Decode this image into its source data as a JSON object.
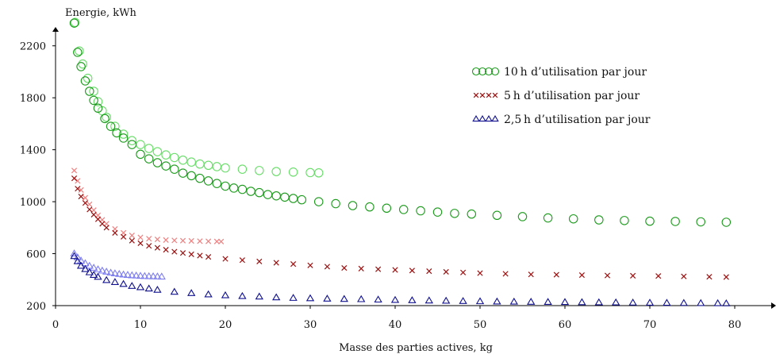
{
  "chart_data": {
    "type": "scatter",
    "title": "",
    "xlabel": "Masse des parties actives, kg",
    "ylabel": "Energie, kWh",
    "xlim": [
      0,
      80
    ],
    "ylim": [
      200,
      2400
    ],
    "xticks": [
      0,
      10,
      20,
      30,
      40,
      50,
      60,
      70,
      80
    ],
    "yticks": [
      200,
      600,
      1000,
      1400,
      1800,
      2200
    ],
    "grid": false,
    "legend_position": "top-right",
    "series": [
      {
        "name": "10 h d’utilisation par jour",
        "marker": "circle",
        "color": "#1a9a1a",
        "color_light": "#66dd66",
        "points": [
          [
            2.2,
            2375
          ],
          [
            2.6,
            2150
          ],
          [
            3.0,
            2040
          ],
          [
            3.5,
            1930
          ],
          [
            4.0,
            1850
          ],
          [
            4.5,
            1780
          ],
          [
            5.0,
            1720
          ],
          [
            5.8,
            1640
          ],
          [
            6.5,
            1580
          ],
          [
            7.2,
            1530
          ],
          [
            8.0,
            1490
          ],
          [
            9.0,
            1440
          ],
          [
            10.0,
            1365
          ],
          [
            11.0,
            1330
          ],
          [
            12.0,
            1300
          ],
          [
            13.0,
            1275
          ],
          [
            14.0,
            1250
          ],
          [
            15.0,
            1220
          ],
          [
            16.0,
            1200
          ],
          [
            17.0,
            1180
          ],
          [
            18.0,
            1160
          ],
          [
            19.0,
            1140
          ],
          [
            20.0,
            1120
          ],
          [
            21.0,
            1105
          ],
          [
            22.0,
            1095
          ],
          [
            23.0,
            1080
          ],
          [
            24.0,
            1070
          ],
          [
            25.0,
            1055
          ],
          [
            26.0,
            1045
          ],
          [
            27.0,
            1035
          ],
          [
            28.0,
            1025
          ],
          [
            29.0,
            1015
          ],
          [
            31.0,
            1000
          ],
          [
            33.0,
            985
          ],
          [
            35.0,
            970
          ],
          [
            37.0,
            960
          ],
          [
            39.0,
            950
          ],
          [
            41.0,
            940
          ],
          [
            43.0,
            930
          ],
          [
            45.0,
            920
          ],
          [
            47.0,
            910
          ],
          [
            49.0,
            905
          ],
          [
            52.0,
            895
          ],
          [
            55.0,
            885
          ],
          [
            58.0,
            875
          ],
          [
            61.0,
            868
          ],
          [
            64.0,
            860
          ],
          [
            67.0,
            855
          ],
          [
            70.0,
            850
          ],
          [
            73.0,
            848
          ],
          [
            76.0,
            845
          ],
          [
            79.0,
            842
          ]
        ],
        "points_light": [
          [
            2.3,
            2380
          ],
          [
            2.8,
            2160
          ],
          [
            3.2,
            2060
          ],
          [
            3.8,
            1950
          ],
          [
            4.5,
            1850
          ],
          [
            5.0,
            1770
          ],
          [
            5.5,
            1700
          ],
          [
            6.0,
            1650
          ],
          [
            7.0,
            1580
          ],
          [
            8.0,
            1520
          ],
          [
            9.0,
            1470
          ],
          [
            10.0,
            1440
          ],
          [
            11.0,
            1410
          ],
          [
            12.0,
            1385
          ],
          [
            13.0,
            1360
          ],
          [
            14.0,
            1340
          ],
          [
            15.0,
            1320
          ],
          [
            16.0,
            1305
          ],
          [
            17.0,
            1290
          ],
          [
            18.0,
            1280
          ],
          [
            19.0,
            1270
          ],
          [
            20.0,
            1260
          ],
          [
            22.0,
            1250
          ],
          [
            24.0,
            1240
          ],
          [
            26.0,
            1232
          ],
          [
            28.0,
            1228
          ],
          [
            30.0,
            1224
          ],
          [
            31.0,
            1222
          ]
        ]
      },
      {
        "name": "5 h d’utilisation par jour",
        "marker": "x",
        "color": "#9b1010",
        "color_light": "#f08080",
        "points": [
          [
            2.2,
            1180
          ],
          [
            2.6,
            1100
          ],
          [
            3.0,
            1040
          ],
          [
            3.5,
            990
          ],
          [
            4.0,
            940
          ],
          [
            4.5,
            900
          ],
          [
            5.0,
            865
          ],
          [
            5.5,
            830
          ],
          [
            6.0,
            800
          ],
          [
            7.0,
            760
          ],
          [
            8.0,
            730
          ],
          [
            9.0,
            700
          ],
          [
            10.0,
            680
          ],
          [
            11.0,
            660
          ],
          [
            12.0,
            645
          ],
          [
            13.0,
            630
          ],
          [
            14.0,
            615
          ],
          [
            15.0,
            605
          ],
          [
            16.0,
            595
          ],
          [
            17.0,
            585
          ],
          [
            18.0,
            575
          ],
          [
            20.0,
            560
          ],
          [
            22.0,
            550
          ],
          [
            24.0,
            540
          ],
          [
            26.0,
            530
          ],
          [
            28.0,
            520
          ],
          [
            30.0,
            510
          ],
          [
            32.0,
            500
          ],
          [
            34.0,
            490
          ],
          [
            36.0,
            485
          ],
          [
            38.0,
            480
          ],
          [
            40.0,
            475
          ],
          [
            42.0,
            470
          ],
          [
            44.0,
            465
          ],
          [
            46.0,
            460
          ],
          [
            48.0,
            455
          ],
          [
            50.0,
            450
          ],
          [
            53.0,
            445
          ],
          [
            56.0,
            440
          ],
          [
            59.0,
            438
          ],
          [
            62.0,
            435
          ],
          [
            65.0,
            432
          ],
          [
            68.0,
            430
          ],
          [
            71.0,
            428
          ],
          [
            74.0,
            425
          ],
          [
            77.0,
            422
          ],
          [
            79.0,
            420
          ]
        ],
        "points_light": [
          [
            2.2,
            1240
          ],
          [
            2.6,
            1160
          ],
          [
            3.0,
            1090
          ],
          [
            3.5,
            1030
          ],
          [
            4.0,
            980
          ],
          [
            4.5,
            935
          ],
          [
            5.0,
            895
          ],
          [
            5.5,
            860
          ],
          [
            6.0,
            830
          ],
          [
            7.0,
            790
          ],
          [
            8.0,
            760
          ],
          [
            9.0,
            740
          ],
          [
            10.0,
            725
          ],
          [
            11.0,
            715
          ],
          [
            12.0,
            710
          ],
          [
            13.0,
            705
          ],
          [
            14.0,
            702
          ],
          [
            15.0,
            700
          ],
          [
            16.0,
            698
          ],
          [
            17.0,
            696
          ],
          [
            18.0,
            695
          ],
          [
            19.0,
            694
          ],
          [
            19.5,
            693
          ]
        ]
      },
      {
        "name": "2,5 h d’utilisation par jour",
        "marker": "triangle",
        "color": "#10108f",
        "color_light": "#7d7df0",
        "points": [
          [
            2.2,
            580
          ],
          [
            2.6,
            540
          ],
          [
            3.0,
            505
          ],
          [
            3.5,
            480
          ],
          [
            4.0,
            455
          ],
          [
            4.5,
            435
          ],
          [
            5.0,
            420
          ],
          [
            6.0,
            395
          ],
          [
            7.0,
            380
          ],
          [
            8.0,
            365
          ],
          [
            9.0,
            350
          ],
          [
            10.0,
            340
          ],
          [
            11.0,
            330
          ],
          [
            12.0,
            320
          ],
          [
            14.0,
            305
          ],
          [
            16.0,
            295
          ],
          [
            18.0,
            285
          ],
          [
            20.0,
            278
          ],
          [
            22.0,
            272
          ],
          [
            24.0,
            268
          ],
          [
            26.0,
            262
          ],
          [
            28.0,
            258
          ],
          [
            30.0,
            255
          ],
          [
            32.0,
            252
          ],
          [
            34.0,
            250
          ],
          [
            36.0,
            248
          ],
          [
            38.0,
            245
          ],
          [
            40.0,
            242
          ],
          [
            42.0,
            240
          ],
          [
            44.0,
            238
          ],
          [
            46.0,
            236
          ],
          [
            48.0,
            234
          ],
          [
            50.0,
            232
          ],
          [
            52.0,
            230
          ],
          [
            54.0,
            229
          ],
          [
            56.0,
            228
          ],
          [
            58.0,
            227
          ],
          [
            60.0,
            226
          ],
          [
            62.0,
            225
          ],
          [
            64.0,
            224
          ],
          [
            66.0,
            223
          ],
          [
            68.0,
            222
          ],
          [
            70.0,
            221
          ],
          [
            72.0,
            220
          ],
          [
            74.0,
            219
          ],
          [
            76.0,
            218
          ],
          [
            78.0,
            217
          ],
          [
            79.0,
            216
          ]
        ],
        "points_light": [
          [
            2.2,
            600
          ],
          [
            2.6,
            570
          ],
          [
            3.0,
            545
          ],
          [
            3.5,
            525
          ],
          [
            4.0,
            505
          ],
          [
            4.5,
            490
          ],
          [
            5.0,
            478
          ],
          [
            5.5,
            468
          ],
          [
            6.0,
            460
          ],
          [
            6.5,
            452
          ],
          [
            7.0,
            447
          ],
          [
            7.5,
            442
          ],
          [
            8.0,
            438
          ],
          [
            8.5,
            435
          ],
          [
            9.0,
            432
          ],
          [
            9.5,
            430
          ],
          [
            10.0,
            428
          ],
          [
            10.5,
            426
          ],
          [
            11.0,
            425
          ],
          [
            11.5,
            424
          ],
          [
            12.0,
            423
          ],
          [
            12.5,
            422
          ]
        ]
      }
    ]
  }
}
